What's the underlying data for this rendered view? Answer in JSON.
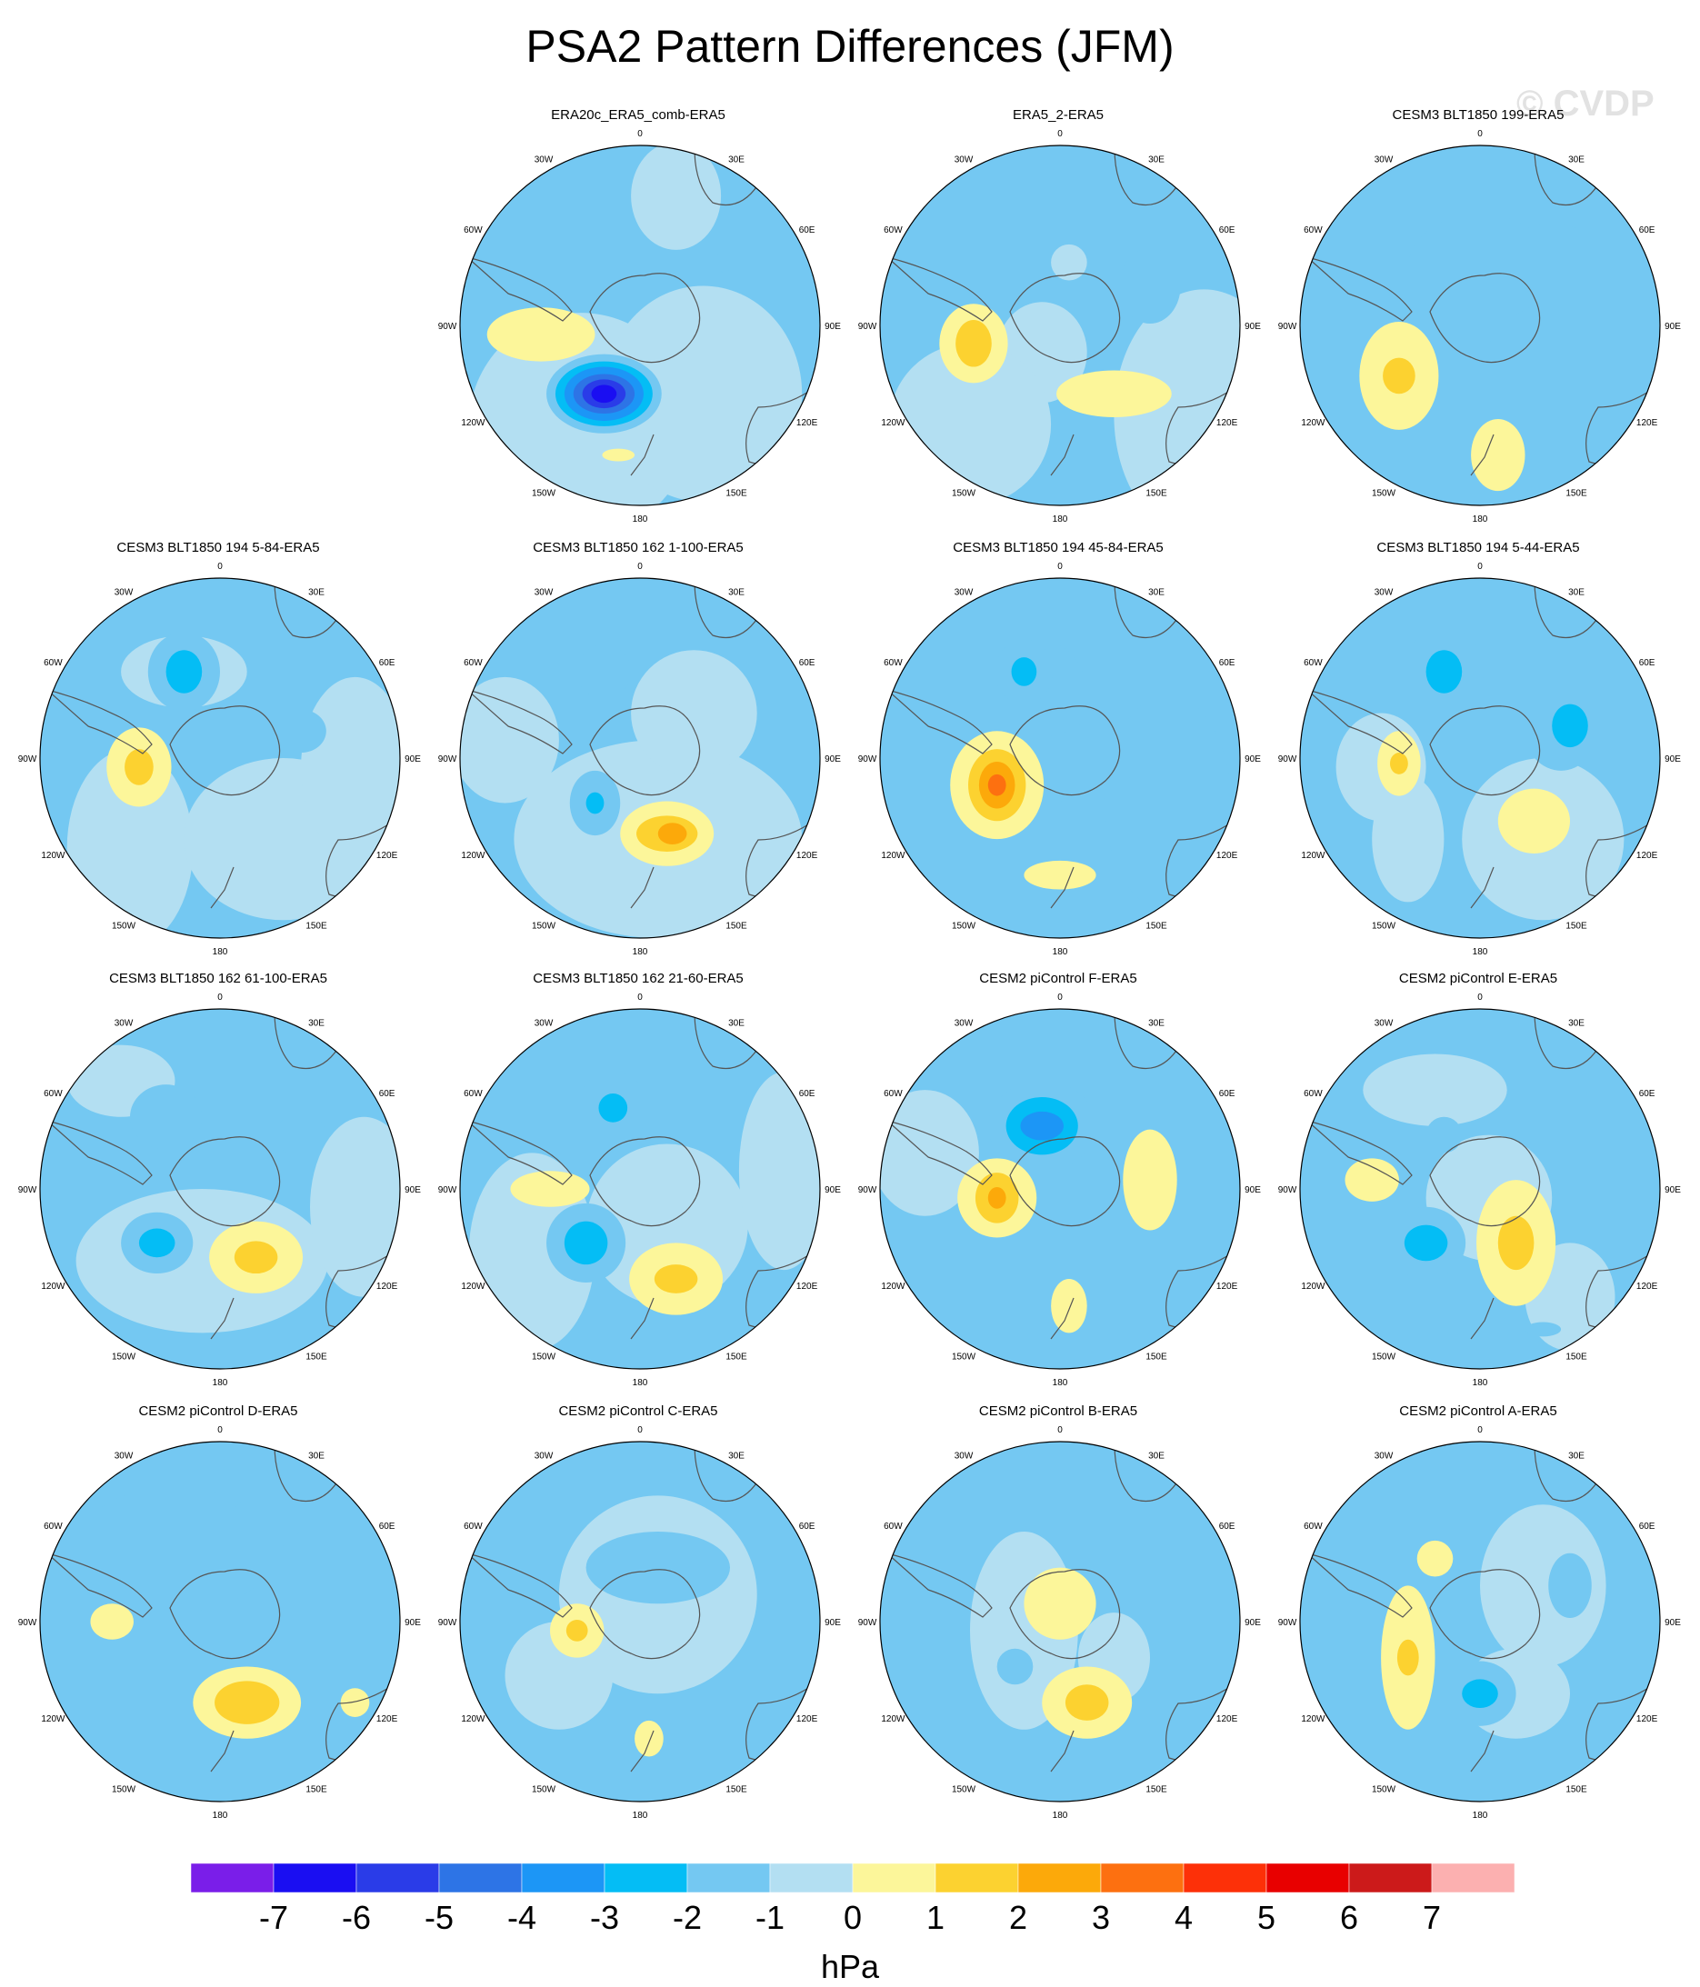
{
  "title": "PSA2 Pattern Differences (JFM)",
  "watermark": "© CVDP",
  "lon_labels": [
    "0",
    "30E",
    "60E",
    "90E",
    "120E",
    "150E",
    "180",
    "150W",
    "120W",
    "90W",
    "60W",
    "30W"
  ],
  "panels": [
    {
      "title": "ERA20c_ERA5_comb-ERA5",
      "row": 0,
      "col": 1,
      "blobs": [
        [
          -0.33,
          0.55,
          0.62,
          0.62,
          0
        ],
        [
          0.35,
          0.38,
          0.55,
          0.6,
          0
        ],
        [
          0.2,
          -0.72,
          0.25,
          0.3,
          0
        ],
        [
          -0.55,
          0.05,
          0.3,
          0.15,
          1
        ],
        [
          -0.2,
          0.38,
          0.32,
          0.22,
          -1
        ],
        [
          -0.2,
          0.38,
          0.27,
          0.18,
          -2
        ],
        [
          -0.2,
          0.38,
          0.22,
          0.15,
          -3
        ],
        [
          -0.2,
          0.38,
          0.17,
          0.11,
          -4
        ],
        [
          -0.2,
          0.38,
          0.12,
          0.08,
          -5
        ],
        [
          -0.2,
          0.38,
          0.07,
          0.05,
          -6
        ],
        [
          -0.12,
          0.72,
          0.09,
          0.035,
          1
        ],
        [
          0.47,
          -0.37,
          0.04,
          0.08,
          -1
        ]
      ]
    },
    {
      "title": "ERA5_2-ERA5",
      "row": 0,
      "col": 2,
      "blobs": [
        [
          0.8,
          0.5,
          0.5,
          0.7,
          0
        ],
        [
          -0.1,
          0.15,
          0.25,
          0.28,
          0
        ],
        [
          -0.5,
          0.55,
          0.45,
          0.45,
          0
        ],
        [
          -0.3,
          -0.35,
          0.16,
          0.18,
          -1
        ],
        [
          0.5,
          -0.22,
          0.17,
          0.21,
          -1
        ],
        [
          -0.48,
          0.1,
          0.19,
          0.22,
          1
        ],
        [
          -0.48,
          0.1,
          0.1,
          0.13,
          2
        ],
        [
          0.3,
          0.38,
          0.32,
          0.13,
          1
        ],
        [
          0.05,
          -0.35,
          0.1,
          0.1,
          0
        ]
      ]
    },
    {
      "title": "CESM3 BLT1850 199-ERA5",
      "row": 0,
      "col": 3,
      "blobs": [
        [
          0,
          -0.32,
          0.4,
          0.3,
          -1
        ],
        [
          0.15,
          0.28,
          0.12,
          0.3,
          -1
        ],
        [
          -0.45,
          0.28,
          0.22,
          0.3,
          1
        ],
        [
          -0.45,
          0.28,
          0.09,
          0.1,
          2
        ],
        [
          0.1,
          0.72,
          0.15,
          0.2,
          1
        ],
        [
          0.4,
          -0.45,
          0.2,
          0.12,
          -1
        ]
      ]
    },
    {
      "title": "CESM3 BLT1850 194 5-84-ERA5",
      "row": 1,
      "col": 0,
      "blobs": [
        [
          -0.5,
          0.5,
          0.35,
          0.55,
          0
        ],
        [
          0.35,
          0.45,
          0.55,
          0.45,
          0
        ],
        [
          0.75,
          0.05,
          0.3,
          0.5,
          0
        ],
        [
          -0.2,
          -0.48,
          0.35,
          0.2,
          0
        ],
        [
          -0.45,
          0.05,
          0.18,
          0.22,
          1
        ],
        [
          -0.45,
          0.05,
          0.08,
          0.1,
          2
        ],
        [
          -0.2,
          -0.48,
          0.2,
          0.22,
          -1
        ],
        [
          -0.2,
          -0.48,
          0.1,
          0.12,
          -2
        ],
        [
          0.45,
          -0.15,
          0.14,
          0.12,
          -1
        ]
      ]
    },
    {
      "title": "CESM3 BLT1850 162 1-100-ERA5",
      "row": 1,
      "col": 1,
      "blobs": [
        [
          0.1,
          0.45,
          0.8,
          0.55,
          0
        ],
        [
          -0.75,
          -0.1,
          0.3,
          0.35,
          0
        ],
        [
          0.3,
          -0.25,
          0.35,
          0.35,
          0
        ],
        [
          -0.2,
          -0.48,
          0.15,
          0.15,
          -1
        ],
        [
          -0.25,
          0.25,
          0.14,
          0.18,
          -1
        ],
        [
          -0.25,
          0.25,
          0.05,
          0.06,
          -2
        ],
        [
          0.15,
          0.42,
          0.26,
          0.18,
          1
        ],
        [
          0.15,
          0.42,
          0.17,
          0.1,
          2
        ],
        [
          0.18,
          0.42,
          0.08,
          0.06,
          3
        ]
      ]
    },
    {
      "title": "CESM3 BLT1850 194 45-84-ERA5",
      "row": 1,
      "col": 2,
      "blobs": [
        [
          -0.1,
          -0.35,
          0.25,
          0.3,
          -1
        ],
        [
          0.6,
          0.25,
          0.35,
          0.6,
          -1
        ],
        [
          0.1,
          0.05,
          0.3,
          0.2,
          -1
        ],
        [
          -0.2,
          -0.48,
          0.16,
          0.18,
          -1
        ],
        [
          -0.2,
          -0.48,
          0.07,
          0.08,
          -2
        ],
        [
          -0.35,
          0.15,
          0.26,
          0.3,
          1
        ],
        [
          -0.35,
          0.15,
          0.16,
          0.2,
          2
        ],
        [
          -0.35,
          0.15,
          0.1,
          0.13,
          3
        ],
        [
          -0.35,
          0.15,
          0.05,
          0.06,
          4
        ],
        [
          0.0,
          0.65,
          0.2,
          0.08,
          1
        ]
      ]
    },
    {
      "title": "CESM3 BLT1850 194 5-44-ERA5",
      "row": 1,
      "col": 3,
      "blobs": [
        [
          -0.55,
          0.05,
          0.25,
          0.3,
          0
        ],
        [
          0.35,
          0.45,
          0.45,
          0.45,
          0
        ],
        [
          -0.4,
          0.45,
          0.2,
          0.35,
          0
        ],
        [
          -0.2,
          -0.48,
          0.22,
          0.25,
          -1
        ],
        [
          -0.2,
          -0.48,
          0.1,
          0.12,
          -2
        ],
        [
          0.45,
          -0.15,
          0.2,
          0.22,
          -1
        ],
        [
          0.5,
          -0.18,
          0.1,
          0.12,
          -2
        ],
        [
          -0.45,
          0.03,
          0.12,
          0.18,
          1
        ],
        [
          -0.45,
          0.03,
          0.05,
          0.06,
          2
        ],
        [
          0.3,
          0.35,
          0.2,
          0.18,
          1
        ]
      ]
    },
    {
      "title": "CESM3 BLT1850 162 61-100-ERA5",
      "row": 2,
      "col": 0,
      "blobs": [
        [
          -0.1,
          0.4,
          0.7,
          0.4,
          0
        ],
        [
          0.8,
          0.1,
          0.3,
          0.5,
          0
        ],
        [
          -0.55,
          -0.6,
          0.3,
          0.2,
          0
        ],
        [
          -0.3,
          -0.4,
          0.2,
          0.18,
          -1
        ],
        [
          0.45,
          -0.3,
          0.14,
          0.12,
          -1
        ],
        [
          -0.35,
          0.3,
          0.2,
          0.17,
          -1
        ],
        [
          -0.35,
          0.3,
          0.1,
          0.08,
          -2
        ],
        [
          0.2,
          0.38,
          0.26,
          0.2,
          1
        ],
        [
          0.2,
          0.38,
          0.12,
          0.09,
          2
        ]
      ]
    },
    {
      "title": "CESM3 BLT1850 162 21-60-ERA5",
      "row": 2,
      "col": 1,
      "blobs": [
        [
          -0.6,
          0.35,
          0.35,
          0.55,
          0
        ],
        [
          0.15,
          0.2,
          0.45,
          0.45,
          0
        ],
        [
          0.8,
          -0.1,
          0.25,
          0.55,
          0
        ],
        [
          -0.15,
          -0.45,
          0.2,
          0.2,
          -1
        ],
        [
          -0.15,
          -0.45,
          0.08,
          0.08,
          -2
        ],
        [
          -0.3,
          0.3,
          0.22,
          0.22,
          -1
        ],
        [
          -0.3,
          0.3,
          0.12,
          0.12,
          -2
        ],
        [
          -0.5,
          0.0,
          0.22,
          0.1,
          1
        ],
        [
          0.2,
          0.5,
          0.26,
          0.2,
          1
        ],
        [
          0.2,
          0.5,
          0.12,
          0.08,
          2
        ]
      ]
    },
    {
      "title": "CESM2 piControl F-ERA5",
      "row": 2,
      "col": 2,
      "blobs": [
        [
          -0.75,
          -0.2,
          0.3,
          0.35,
          0
        ],
        [
          -0.1,
          -0.35,
          0.3,
          0.25,
          -1
        ],
        [
          -0.1,
          -0.35,
          0.2,
          0.16,
          -2
        ],
        [
          -0.1,
          -0.35,
          0.12,
          0.08,
          -3
        ],
        [
          0.15,
          0.35,
          0.15,
          0.15,
          -1
        ],
        [
          0.5,
          -0.05,
          0.15,
          0.28,
          1
        ],
        [
          -0.35,
          0.05,
          0.22,
          0.22,
          1
        ],
        [
          -0.35,
          0.05,
          0.12,
          0.14,
          2
        ],
        [
          -0.35,
          0.05,
          0.05,
          0.06,
          3
        ],
        [
          0.05,
          0.65,
          0.1,
          0.15,
          1
        ]
      ]
    },
    {
      "title": "CESM2 piControl E-ERA5",
      "row": 2,
      "col": 3,
      "blobs": [
        [
          -0.25,
          -0.55,
          0.4,
          0.2,
          0
        ],
        [
          0.05,
          0.05,
          0.35,
          0.35,
          0
        ],
        [
          0.5,
          0.6,
          0.25,
          0.3,
          0
        ],
        [
          -0.2,
          -0.3,
          0.1,
          0.1,
          -1
        ],
        [
          -0.6,
          -0.05,
          0.15,
          0.12,
          1
        ],
        [
          -0.3,
          0.3,
          0.22,
          0.2,
          -1
        ],
        [
          -0.3,
          0.3,
          0.12,
          0.1,
          -2
        ],
        [
          0.2,
          0.3,
          0.22,
          0.35,
          1
        ],
        [
          0.2,
          0.3,
          0.1,
          0.15,
          2
        ],
        [
          0.35,
          0.78,
          0.1,
          0.04,
          -1
        ]
      ]
    },
    {
      "title": "CESM2 piControl D-ERA5",
      "row": 3,
      "col": 0,
      "blobs": [
        [
          -0.25,
          -0.4,
          0.55,
          0.35,
          -1
        ],
        [
          0.25,
          -0.55,
          0.2,
          0.15,
          -1
        ],
        [
          -0.6,
          0.0,
          0.12,
          0.1,
          1
        ],
        [
          0.15,
          0.45,
          0.3,
          0.2,
          1
        ],
        [
          0.15,
          0.45,
          0.18,
          0.12,
          2
        ],
        [
          0.75,
          0.45,
          0.08,
          0.08,
          1
        ]
      ]
    },
    {
      "title": "CESM2 piControl C-ERA5",
      "row": 3,
      "col": 1,
      "blobs": [
        [
          0.1,
          -0.15,
          0.55,
          0.55,
          0
        ],
        [
          -0.45,
          0.3,
          0.3,
          0.3,
          0
        ],
        [
          0.1,
          -0.3,
          0.4,
          0.2,
          -1
        ],
        [
          -0.35,
          0.05,
          0.15,
          0.15,
          1
        ],
        [
          -0.35,
          0.05,
          0.06,
          0.06,
          2
        ],
        [
          0.05,
          0.65,
          0.08,
          0.1,
          1
        ]
      ]
    },
    {
      "title": "CESM2 piControl B-ERA5",
      "row": 3,
      "col": 2,
      "blobs": [
        [
          -0.2,
          0.05,
          0.3,
          0.55,
          0
        ],
        [
          0.3,
          0.2,
          0.2,
          0.25,
          0
        ],
        [
          0.0,
          -0.1,
          0.2,
          0.2,
          1
        ],
        [
          -0.25,
          0.25,
          0.1,
          0.1,
          -1
        ],
        [
          0.15,
          0.45,
          0.25,
          0.2,
          1
        ],
        [
          0.15,
          0.45,
          0.12,
          0.1,
          2
        ]
      ]
    },
    {
      "title": "CESM2 piControl A-ERA5",
      "row": 3,
      "col": 3,
      "blobs": [
        [
          0.35,
          -0.2,
          0.35,
          0.45,
          0
        ],
        [
          0.2,
          0.4,
          0.3,
          0.25,
          0
        ],
        [
          0.5,
          -0.2,
          0.12,
          0.18,
          -1
        ],
        [
          -0.4,
          0.2,
          0.15,
          0.4,
          1
        ],
        [
          -0.4,
          0.2,
          0.06,
          0.1,
          2
        ],
        [
          -0.25,
          -0.35,
          0.1,
          0.1,
          1
        ],
        [
          0.0,
          0.4,
          0.2,
          0.18,
          -1
        ],
        [
          0.0,
          0.4,
          0.1,
          0.08,
          -2
        ]
      ]
    }
  ],
  "colorbar": {
    "units": "hPa",
    "labels": [
      "-7",
      "-6",
      "-5",
      "-4",
      "-3",
      "-2",
      "-1",
      "0",
      "1",
      "2",
      "3",
      "4",
      "5",
      "6",
      "7"
    ],
    "colors": [
      "#7a1ee9",
      "#1a0ef2",
      "#2a3ce8",
      "#2d74e6",
      "#1c96f6",
      "#04bdf5",
      "#74c8f2",
      "#b3dff2",
      "#fcf69a",
      "#fcd230",
      "#fca90a",
      "#fd7010",
      "#fd3008",
      "#e80000",
      "#cc1a1a",
      "#fcb0b0"
    ]
  },
  "colors": {
    "background_field": "#fcf69a",
    "negative_field": "#b3dff2",
    "coastline": "#555555"
  }
}
